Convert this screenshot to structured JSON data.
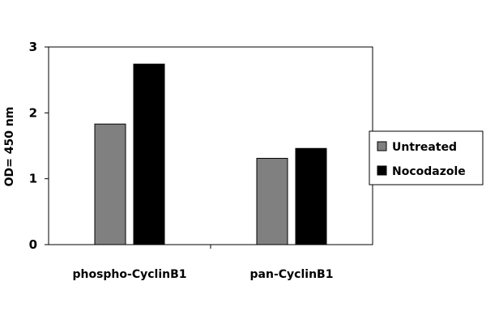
{
  "chart_data": {
    "type": "bar",
    "title": "",
    "xlabel": "",
    "ylabel": "OD= 450 nm",
    "categories": [
      "phospho-CyclinB1",
      "pan-CyclinB1"
    ],
    "series": [
      {
        "name": "Untreated",
        "values": [
          1.83,
          1.31
        ],
        "color": "#808080"
      },
      {
        "name": "Nocodazole",
        "values": [
          2.74,
          1.46
        ],
        "color": "#000000"
      }
    ],
    "ylim": [
      0,
      3
    ],
    "yticks": [
      0,
      1,
      2,
      3
    ],
    "grid": false,
    "legend_position": "right"
  }
}
